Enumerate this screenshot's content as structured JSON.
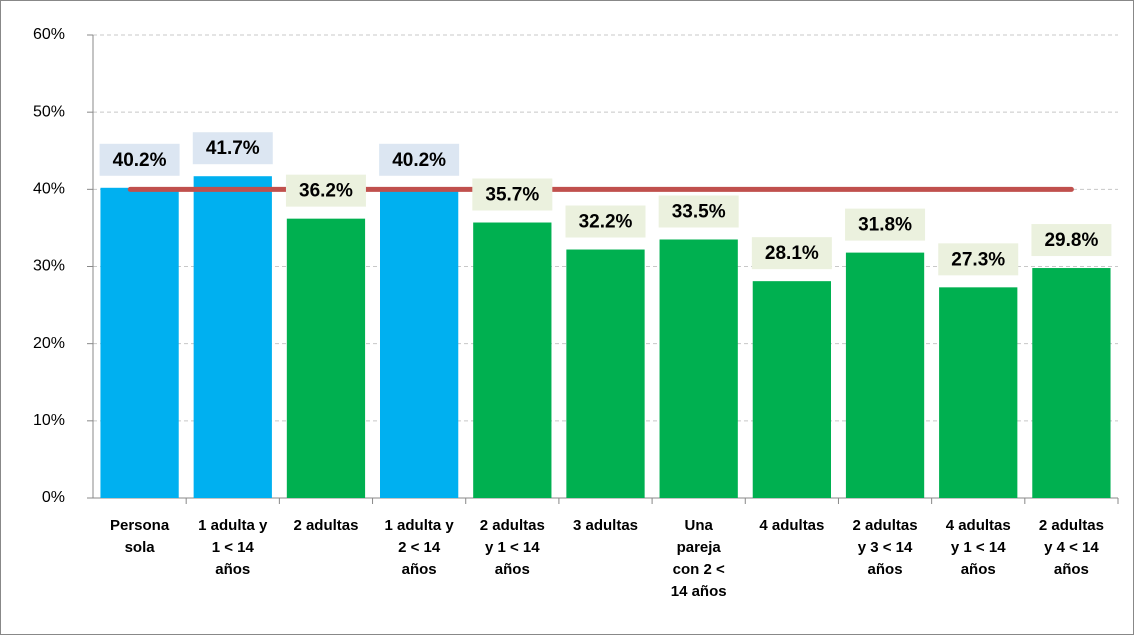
{
  "chart_data": {
    "type": "bar",
    "categories": [
      [
        "Persona",
        "sola"
      ],
      [
        "1 adulta y",
        "1 < 14",
        "años"
      ],
      [
        "2 adultas"
      ],
      [
        "1 adulta y",
        "2 < 14",
        "años"
      ],
      [
        "2 adultas",
        "y 1 < 14",
        "años"
      ],
      [
        "3 adultas"
      ],
      [
        "Una",
        "pareja",
        "con 2 <",
        "14 años"
      ],
      [
        "4 adultas"
      ],
      [
        "2 adultas",
        "y 3 < 14",
        "años"
      ],
      [
        "4 adultas",
        "y 1 < 14",
        "años"
      ],
      [
        "2 adultas",
        "y 4 < 14",
        "años"
      ]
    ],
    "values": [
      40.2,
      41.7,
      36.2,
      40.2,
      35.7,
      32.2,
      33.5,
      28.1,
      31.8,
      27.3,
      29.8
    ],
    "value_labels": [
      "40.2%",
      "41.7%",
      "36.2%",
      "40.2%",
      "35.7%",
      "32.2%",
      "33.5%",
      "28.1%",
      "31.8%",
      "27.3%",
      "29.8%"
    ],
    "colors": [
      "#00b0f0",
      "#00b0f0",
      "#00b050",
      "#00b0f0",
      "#00b050",
      "#00b050",
      "#00b050",
      "#00b050",
      "#00b050",
      "#00b050",
      "#00b050"
    ],
    "label_backgrounds": [
      "#dce6f2",
      "#dce6f2",
      "#ebf1de",
      "#dce6f2",
      "#ebf1de",
      "#ebf1de",
      "#ebf1de",
      "#ebf1de",
      "#ebf1de",
      "#ebf1de",
      "#ebf1de"
    ],
    "label_color": "#4f6228",
    "reference_line": {
      "value": 40,
      "color": "#c0504d"
    },
    "ylim": [
      0,
      60
    ],
    "yticks": [
      {
        "value": 0,
        "label": "0%"
      },
      {
        "value": 10,
        "label": "10%"
      },
      {
        "value": 20,
        "label": "20%"
      },
      {
        "value": 30,
        "label": "30%"
      },
      {
        "value": 40,
        "label": "40%"
      },
      {
        "value": 50,
        "label": "50%"
      },
      {
        "value": 60,
        "label": "60%"
      }
    ],
    "grid": true
  }
}
